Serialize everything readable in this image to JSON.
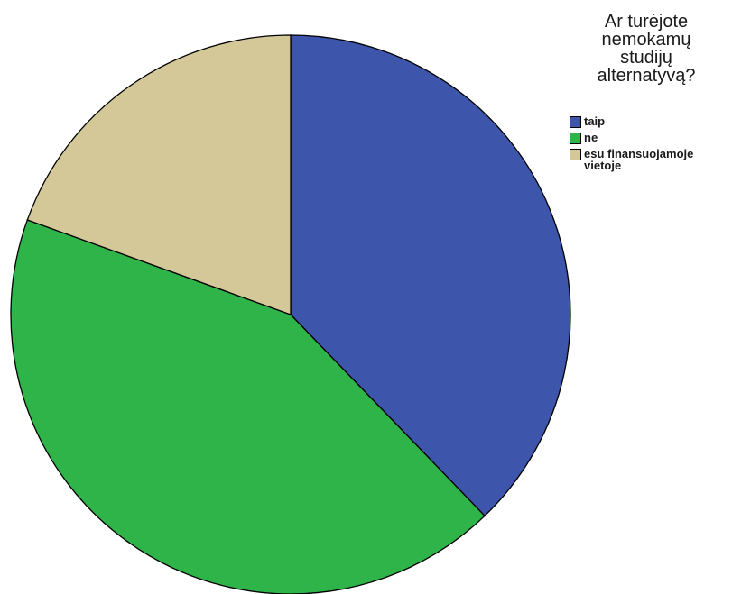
{
  "colors": {
    "background": "#ffffff",
    "outline": "#000000"
  },
  "chart_data": {
    "type": "pie",
    "title": "",
    "legend": {
      "title": "Ar turėjote\nnemokamų\nstudijų\nalternatyvą?",
      "placement": "top-right"
    },
    "categories": [
      "taip",
      "ne",
      "esu finansuojamoje\nvietoje"
    ],
    "colors": [
      "#3d55ab",
      "#2fb44a",
      "#d4c898"
    ],
    "values": [
      37.8,
      42.7,
      19.5
    ],
    "start_angle_deg": 0,
    "direction": "clockwise"
  }
}
